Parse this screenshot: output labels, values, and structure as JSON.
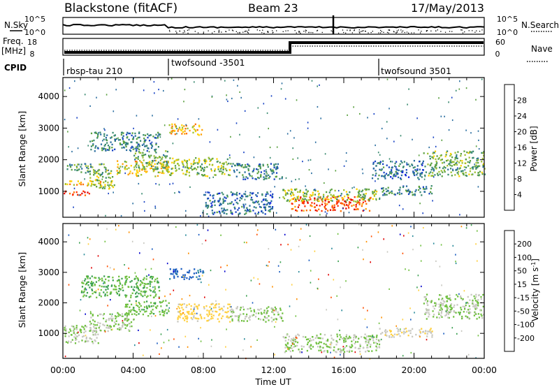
{
  "header": {
    "station": "Blackstone (fitACF)",
    "beam": "Beam 23",
    "date": "17/May/2013"
  },
  "strip_labels": {
    "nsky": "N.Sky",
    "freq": "Freq.",
    "mhz": "[MHz]",
    "cpid": "CPID",
    "nsearch": "N.Search",
    "nave": "Nave"
  },
  "strip_ticks": {
    "nsky_top": "10^5",
    "nsky_bottom": "10^0",
    "freq_top": "18",
    "freq_bottom": "8",
    "nave_top": "60",
    "nave_bottom": "0"
  },
  "cpid_segments": [
    {
      "label": "rbsp-tau 210",
      "start_h": 0
    },
    {
      "label": "twofsound -3501",
      "start_h": 6
    },
    {
      "label": "twofsound 3501",
      "start_h": 18
    }
  ],
  "x_axis": {
    "label": "Time UT",
    "ticks": [
      "00:00",
      "04:00",
      "08:00",
      "12:00",
      "16:00",
      "20:00",
      "00:00"
    ],
    "range_h": [
      0,
      24
    ]
  },
  "chart_data": [
    {
      "type": "heatmap",
      "name": "power",
      "xlabel": "Time UT",
      "ylabel": "Slant Range [km]",
      "ylim": [
        180,
        4600
      ],
      "y_ticks": [
        1000,
        2000,
        3000,
        4000
      ],
      "colorbar": {
        "label": "Power [dB]",
        "ticks": [
          "4",
          "8",
          "12",
          "16",
          "20",
          "24",
          "28"
        ],
        "colors": [
          "#1020e0",
          "#1a44c4",
          "#2a6ea0",
          "#3a8a70",
          "#5aa040",
          "#9cc030",
          "#ffd200",
          "#ffa000",
          "#ff7000",
          "#ff3000",
          "#e00000"
        ]
      },
      "regions": [
        {
          "t": [
            0.0,
            1.5
          ],
          "r": [
            900,
            1050
          ],
          "level": 28
        },
        {
          "t": [
            0.0,
            2.2
          ],
          "r": [
            1200,
            1350
          ],
          "level": 20
        },
        {
          "t": [
            0.2,
            2.5
          ],
          "r": [
            1600,
            1900
          ],
          "level": 10
        },
        {
          "t": [
            1.5,
            3.0
          ],
          "r": [
            1100,
            1700
          ],
          "level": 14
        },
        {
          "t": [
            3.0,
            6.0
          ],
          "r": [
            1500,
            2000
          ],
          "level": 18
        },
        {
          "t": [
            4.0,
            6.0
          ],
          "r": [
            1700,
            2300
          ],
          "level": 12
        },
        {
          "t": [
            1.5,
            5.5
          ],
          "r": [
            2300,
            2900
          ],
          "level": 8
        },
        {
          "t": [
            6.0,
            8.0
          ],
          "r": [
            2800,
            3150
          ],
          "level": 20
        },
        {
          "t": [
            6.0,
            9.5
          ],
          "r": [
            1500,
            2100
          ],
          "level": 14
        },
        {
          "t": [
            9.5,
            12.5
          ],
          "r": [
            1400,
            1900
          ],
          "level": 8
        },
        {
          "t": [
            8.0,
            12.0
          ],
          "r": [
            300,
            1000
          ],
          "level": 6
        },
        {
          "t": [
            13.0,
            17.5
          ],
          "r": [
            400,
            850
          ],
          "level": 26
        },
        {
          "t": [
            12.5,
            18.0
          ],
          "r": [
            700,
            1100
          ],
          "level": 14
        },
        {
          "t": [
            18.0,
            21.0
          ],
          "r": [
            900,
            1200
          ],
          "level": 8
        },
        {
          "t": [
            17.5,
            20.5
          ],
          "r": [
            1400,
            2000
          ],
          "level": 6
        },
        {
          "t": [
            20.5,
            24.0
          ],
          "r": [
            1500,
            2300
          ],
          "level": 12
        }
      ]
    },
    {
      "type": "heatmap",
      "name": "velocity",
      "xlabel": "Time UT",
      "ylabel": "Slant Range [km]",
      "ylim": [
        180,
        4600
      ],
      "y_ticks": [
        1000,
        2000,
        3000,
        4000
      ],
      "colorbar": {
        "label": "Velocity [m s^-1]",
        "ticks": [
          "200",
          "100",
          "50",
          "15",
          "-15",
          "-50",
          "-100",
          "-200"
        ],
        "colors": [
          "#0000cc",
          "#1a5cc0",
          "#2a8a9a",
          "#3aa050",
          "#70c040",
          "#c8c8c0",
          "#ffd040",
          "#ff9000",
          "#ff5000",
          "#e00000"
        ]
      },
      "regions": [
        {
          "t": [
            0.0,
            2.0
          ],
          "r": [
            700,
            1300
          ],
          "level": 0
        },
        {
          "t": [
            1.5,
            4.0
          ],
          "r": [
            1100,
            1700
          ],
          "level": 0
        },
        {
          "t": [
            3.5,
            6.0
          ],
          "r": [
            1600,
            2100
          ],
          "level": 30
        },
        {
          "t": [
            1.0,
            5.5
          ],
          "r": [
            2200,
            2900
          ],
          "level": 40
        },
        {
          "t": [
            6.0,
            8.0
          ],
          "r": [
            2800,
            3150
          ],
          "level": 150
        },
        {
          "t": [
            6.5,
            9.5
          ],
          "r": [
            1400,
            2000
          ],
          "level": -60
        },
        {
          "t": [
            9.5,
            12.5
          ],
          "r": [
            1400,
            1900
          ],
          "level": 0
        },
        {
          "t": [
            12.5,
            18.0
          ],
          "r": [
            400,
            1000
          ],
          "level": 0
        },
        {
          "t": [
            18.0,
            21.0
          ],
          "r": [
            900,
            1200
          ],
          "level": -30
        },
        {
          "t": [
            20.5,
            24.0
          ],
          "r": [
            1500,
            2300
          ],
          "level": 0
        }
      ]
    }
  ]
}
